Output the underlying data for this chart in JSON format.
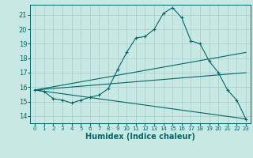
{
  "xlabel": "Humidex (Indice chaleur)",
  "xlim": [
    -0.5,
    23.5
  ],
  "ylim": [
    13.5,
    21.7
  ],
  "xticks": [
    0,
    1,
    2,
    3,
    4,
    5,
    6,
    7,
    8,
    9,
    10,
    11,
    12,
    13,
    14,
    15,
    16,
    17,
    18,
    19,
    20,
    21,
    22,
    23
  ],
  "yticks": [
    14,
    15,
    16,
    17,
    18,
    19,
    20,
    21
  ],
  "bg_color": "#c8e8e4",
  "grid_color": "#a8cccc",
  "line_color": "#006868",
  "lines": [
    {
      "x": [
        0,
        1,
        2,
        3,
        4,
        5,
        6,
        7,
        8,
        9,
        10,
        11,
        12,
        13,
        14,
        15,
        16,
        17,
        18,
        19,
        20,
        21,
        22,
        23
      ],
      "y": [
        15.8,
        15.7,
        15.2,
        15.1,
        14.9,
        15.1,
        15.3,
        15.45,
        15.9,
        17.2,
        18.4,
        19.4,
        19.5,
        20.0,
        21.1,
        21.5,
        20.8,
        19.2,
        19.0,
        17.8,
        17.0,
        15.8,
        15.1,
        13.8
      ],
      "marker": "+"
    },
    {
      "x": [
        0,
        23
      ],
      "y": [
        15.8,
        18.4
      ],
      "marker": null
    },
    {
      "x": [
        0,
        23
      ],
      "y": [
        15.8,
        17.0
      ],
      "marker": null
    },
    {
      "x": [
        0,
        23
      ],
      "y": [
        15.8,
        13.8
      ],
      "marker": null
    }
  ]
}
